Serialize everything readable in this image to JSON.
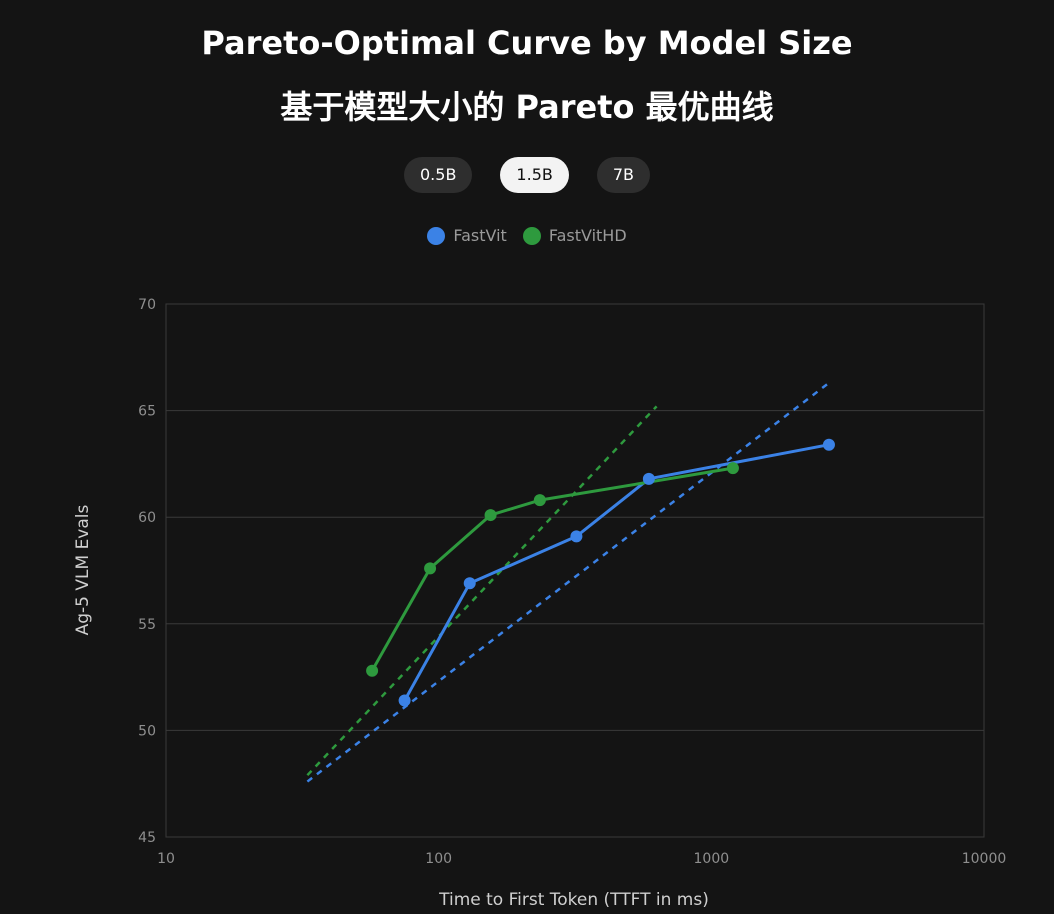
{
  "title": "Pareto-Optimal Curve by Model Size",
  "subtitle": "基于模型大小的 Pareto 最优曲线",
  "tabs": [
    {
      "label": "0.5B",
      "active": false
    },
    {
      "label": "1.5B",
      "active": true
    },
    {
      "label": "7B",
      "active": false
    }
  ],
  "legend": [
    {
      "label": "FastVit",
      "color": "#3b82e6"
    },
    {
      "label": "FastVitHD",
      "color": "#2e9a3e"
    }
  ],
  "chart_data": {
    "type": "line",
    "xlabel": "Time to First Token (TTFT in ms)",
    "ylabel": "Ag-5 VLM Evals",
    "xscale": "log",
    "xlim": [
      10,
      10000
    ],
    "ylim": [
      45,
      70
    ],
    "xticks": [
      10,
      100,
      1000,
      10000
    ],
    "yticks": [
      45,
      50,
      55,
      60,
      65,
      70
    ],
    "grid": "horizontal",
    "legend_position": "top-center",
    "series": [
      {
        "name": "FastVit",
        "color": "#3b82e6",
        "x": [
          75,
          130,
          320,
          590,
          2700
        ],
        "y": [
          51.4,
          56.9,
          59.1,
          61.8,
          63.4
        ],
        "trend": {
          "x": [
            33,
            2700
          ],
          "y": [
            47.6,
            66.3
          ]
        }
      },
      {
        "name": "FastVitHD",
        "color": "#2e9a3e",
        "x": [
          57,
          93,
          155,
          235,
          1200
        ],
        "y": [
          52.8,
          57.6,
          60.1,
          60.8,
          62.3
        ],
        "trend": {
          "x": [
            33,
            630
          ],
          "y": [
            47.9,
            65.2
          ]
        }
      }
    ]
  }
}
